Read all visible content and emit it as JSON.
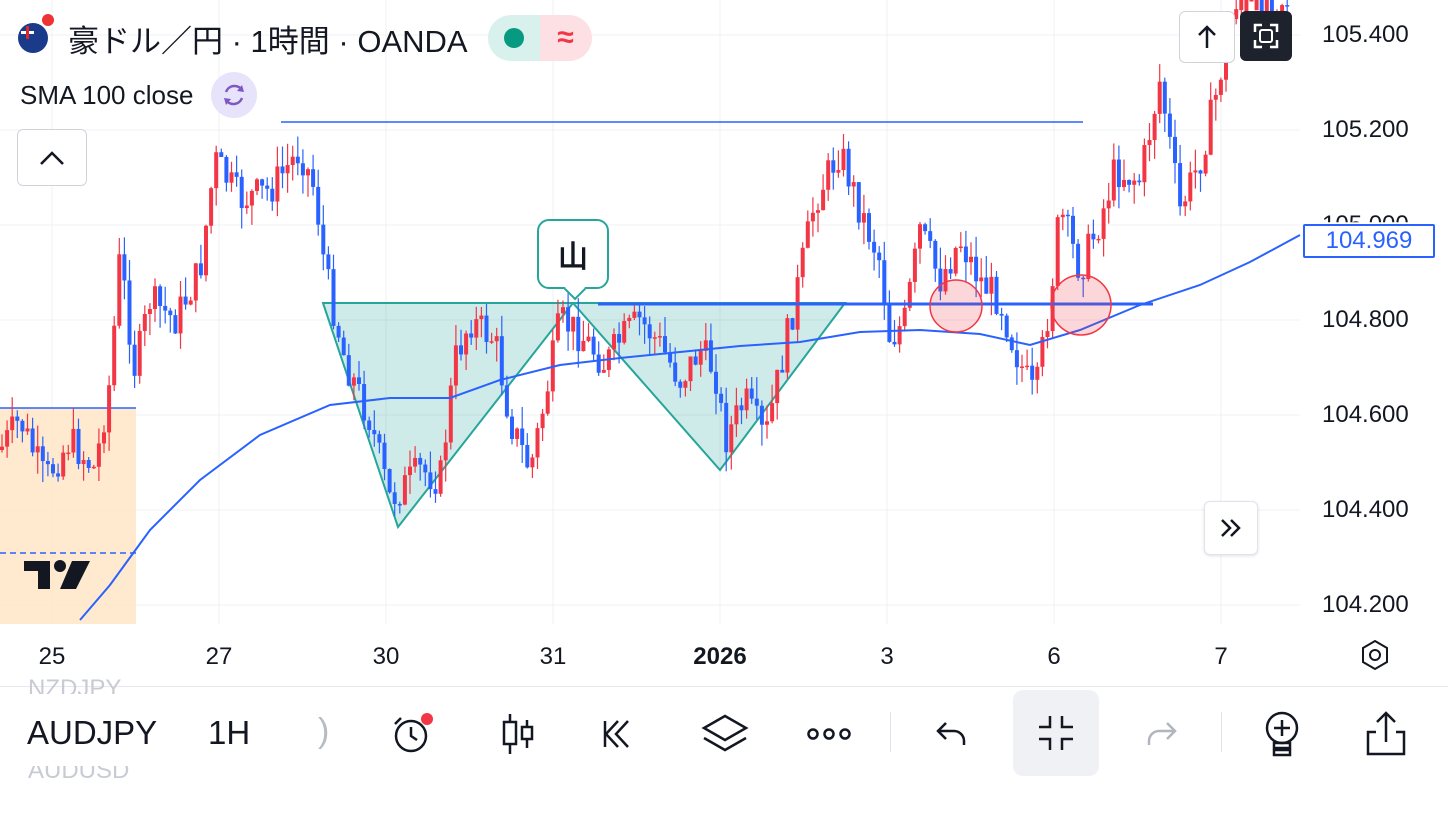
{
  "header": {
    "title": "豪ドル／円 · 1時間 · OANDA",
    "status_rt_label": "≈"
  },
  "indicator": {
    "label": "SMA 100 close"
  },
  "price_axis": {
    "ticks": [
      "105.400",
      "105.200",
      "104.800",
      "104.600",
      "104.400",
      "104.200"
    ],
    "current_price": "104.969",
    "hidden_tick": "105.000"
  },
  "time_axis": {
    "labels": [
      "25",
      "27",
      "30",
      "31",
      "2026",
      "3",
      "6",
      "7"
    ]
  },
  "annotations": {
    "mountain_label": "山"
  },
  "toolbar": {
    "symbol": "AUDJPY",
    "symbol_prev": "NZDJPY",
    "symbol_next": "AUDUSD",
    "interval": "1H",
    "paren": ")"
  },
  "colors": {
    "up": "#f23645",
    "down": "#2962ff",
    "sma": "#2962ff",
    "pattern_fill": "#26a69a",
    "session_bg": "#ffe6c7"
  },
  "icons": [
    "alert-clock-icon",
    "candles-icon",
    "replay-icon",
    "layers-icon",
    "more-icon",
    "undo-icon",
    "exit-fullscreen-icon",
    "redo-icon",
    "add-indicator-icon",
    "share-icon"
  ]
}
